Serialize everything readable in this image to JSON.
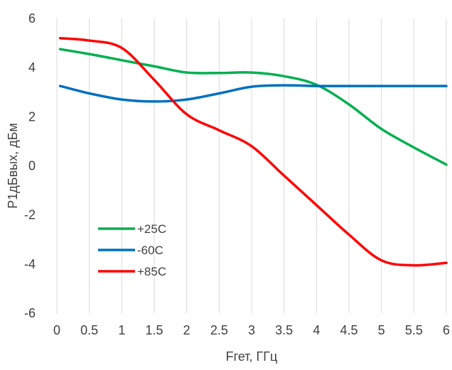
{
  "chart_data": {
    "type": "line",
    "xlabel": "Fгет, ГГц",
    "ylabel": "P1дБвых, дБм",
    "xlim": [
      0,
      6
    ],
    "ylim": [
      -6,
      6
    ],
    "x_ticks": [
      0,
      0.5,
      1,
      1.5,
      2,
      2.5,
      3,
      3.5,
      4,
      4.5,
      5,
      5.5,
      6
    ],
    "x_tick_labels": [
      "0",
      "0.5",
      "1",
      "1.5",
      "2",
      "2.5",
      "3",
      "3.5",
      "4",
      "4.5",
      "5",
      "5.5",
      "6"
    ],
    "y_ticks": [
      -6,
      -4,
      -2,
      0,
      2,
      4,
      6
    ],
    "y_tick_labels": [
      "-6",
      "-4",
      "-2",
      "0",
      "2",
      "4",
      "6"
    ],
    "grid": "vertical",
    "legend_position": "bottom-left",
    "series": [
      {
        "name": "+25C",
        "color": "#00b050",
        "x": [
          0.05,
          0.5,
          1,
          1.5,
          2,
          2.5,
          3,
          3.5,
          4,
          4.5,
          5,
          5.5,
          6
        ],
        "y": [
          4.75,
          4.55,
          4.3,
          4.05,
          3.8,
          3.78,
          3.8,
          3.65,
          3.3,
          2.5,
          1.5,
          0.75,
          0.05
        ]
      },
      {
        "name": "-60C",
        "color": "#0070c0",
        "x": [
          0.05,
          0.5,
          1,
          1.5,
          2,
          2.5,
          3,
          3.5,
          4,
          4.5,
          5,
          5.5,
          6
        ],
        "y": [
          3.25,
          2.95,
          2.7,
          2.62,
          2.7,
          2.95,
          3.22,
          3.28,
          3.25,
          3.25,
          3.25,
          3.25,
          3.25
        ]
      },
      {
        "name": "+85C",
        "color": "#ff0000",
        "x": [
          0.05,
          0.5,
          1,
          1.5,
          2,
          2.5,
          3,
          3.5,
          4,
          4.5,
          5,
          5.5,
          6
        ],
        "y": [
          5.2,
          5.1,
          4.8,
          3.5,
          2.1,
          1.45,
          0.8,
          -0.4,
          -1.6,
          -2.8,
          -3.85,
          -4.05,
          -3.95
        ]
      }
    ]
  }
}
